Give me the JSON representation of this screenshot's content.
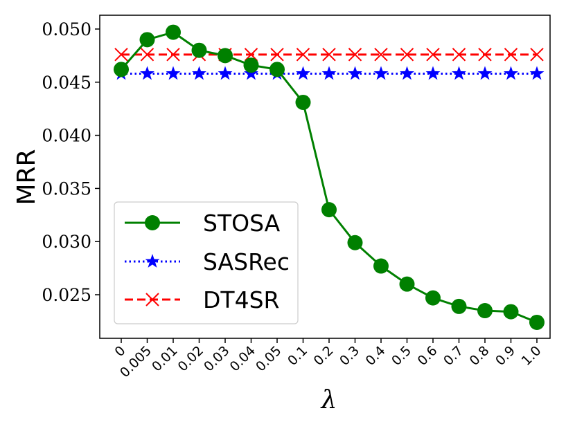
{
  "chart_data": {
    "type": "line",
    "title": "",
    "xlabel": "λ",
    "ylabel": "MRR",
    "categories": [
      "0",
      "0.005",
      "0.01",
      "0.02",
      "0.03",
      "0.04",
      "0.05",
      "0.1",
      "0.2",
      "0.3",
      "0.4",
      "0.5",
      "0.6",
      "0.7",
      "0.8",
      "0.9",
      "1.0"
    ],
    "ylim": [
      0.0209,
      0.0513
    ],
    "yticks": [
      0.025,
      0.03,
      0.035,
      0.04,
      0.045,
      0.05
    ],
    "ytick_labels": [
      "0.025",
      "0.030",
      "0.035",
      "0.040",
      "0.045",
      "0.050"
    ],
    "grid": false,
    "legend_position": "lower-left",
    "series": [
      {
        "name": "STOSA",
        "color": "#008000",
        "linestyle": "solid",
        "marker": "circle",
        "values": [
          0.0462,
          0.049,
          0.0497,
          0.048,
          0.0475,
          0.0466,
          0.0462,
          0.0431,
          0.033,
          0.0299,
          0.0277,
          0.026,
          0.0247,
          0.0239,
          0.0235,
          0.0234,
          0.0224
        ]
      },
      {
        "name": "SASRec",
        "color": "#0000ff",
        "linestyle": "dotted",
        "marker": "star",
        "values": [
          0.0458,
          0.0458,
          0.0458,
          0.0458,
          0.0458,
          0.0458,
          0.0458,
          0.0458,
          0.0458,
          0.0458,
          0.0458,
          0.0458,
          0.0458,
          0.0458,
          0.0458,
          0.0458,
          0.0458
        ]
      },
      {
        "name": "DT4SR",
        "color": "#ff0000",
        "linestyle": "dashed",
        "marker": "x",
        "values": [
          0.0476,
          0.0476,
          0.0476,
          0.0476,
          0.0476,
          0.0476,
          0.0476,
          0.0476,
          0.0476,
          0.0476,
          0.0476,
          0.0476,
          0.0476,
          0.0476,
          0.0476,
          0.0476,
          0.0476
        ]
      }
    ]
  }
}
